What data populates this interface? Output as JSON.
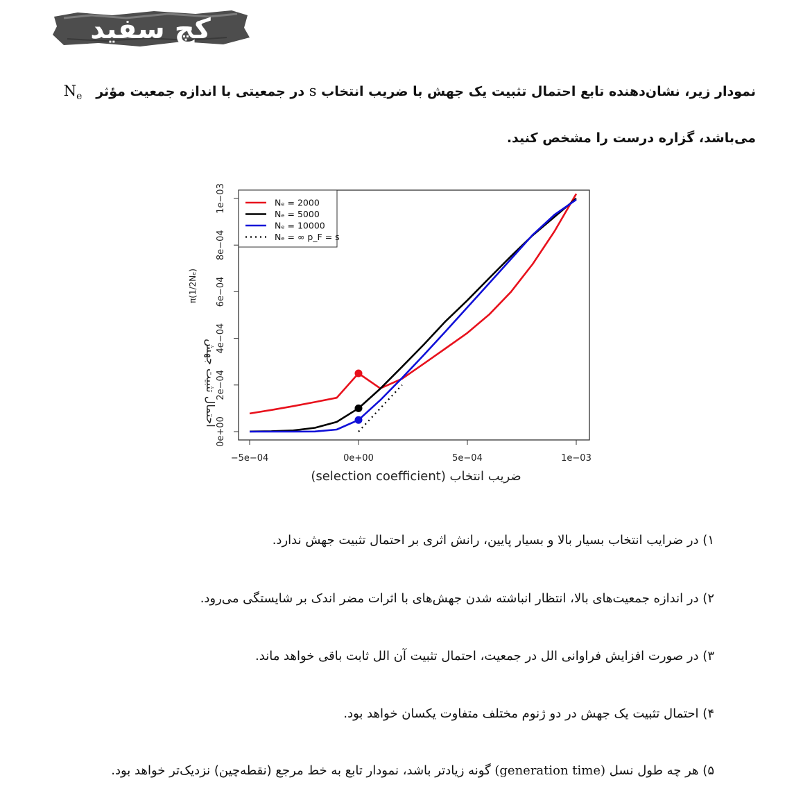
{
  "logo": {
    "text": "کچ سفید"
  },
  "question": {
    "line1_text": "نمودار زیر، نشان‌دهنده تابع احتمال تثبیت یک جهش با ضریب انتخاب",
    "line1_var": "s",
    "line1_text2": "در جمعیتی با اندازه جمعیت مؤثر",
    "line1_var2": "N",
    "line1_var2_sub": "e",
    "line2": "می‌باشد، گزاره درست را مشخص کنید."
  },
  "chart_data": {
    "type": "line",
    "xlabel": "ضریب انتخاب (selection coefficient)",
    "ylabel": "احتمال تثبیت جهش",
    "ylabel_top": "π(1/2Nₑ)",
    "xlim": [
      -0.00055,
      0.00105
    ],
    "ylim": [
      -3e-05,
      0.00104
    ],
    "x_ticks": [
      -0.0005,
      0,
      0.0005,
      0.001
    ],
    "x_tick_labels": [
      "−5e−04",
      "0e+00",
      "5e−04",
      "1e−03"
    ],
    "y_ticks": [
      0,
      0.0002,
      0.0004,
      0.0006,
      0.0008,
      0.001
    ],
    "y_tick_labels": [
      "0e+00",
      "2e−04",
      "4e−04",
      "6e−04",
      "8e−04",
      "1e−03"
    ],
    "legend_position": "top-left",
    "series": [
      {
        "name": "Nₑ = 2000",
        "color": "#e8111c",
        "dash": "solid",
        "x": [
          -0.0005,
          -0.0004,
          -0.0003,
          -0.0002,
          -0.0001,
          0,
          0.0001,
          0.0002,
          0.0003,
          0.0004,
          0.0005,
          0.0006,
          0.0007,
          0.0008,
          0.0009,
          0.001
        ],
        "y": [
          7.78e-05,
          9.29e-05,
          0.0001092,
          0.0001267,
          0.0001453,
          0.00025,
          0.0001854,
          0.0002269,
          0.0002913,
          0.0003571,
          0.0004233,
          0.000502,
          0.0005991,
          0.0007188,
          0.000859,
          0.00102
        ],
        "marker": {
          "x": 0,
          "y": 0.00025
        }
      },
      {
        "name": "Nₑ = 5000",
        "color": "#000000",
        "dash": "solid",
        "x": [
          -0.0005,
          -0.0004,
          -0.0003,
          -0.0002,
          -0.0001,
          0,
          0.0001,
          0.0002,
          0.0003,
          0.0004,
          0.0005,
          0.0006,
          0.0007,
          0.0008,
          0.0009,
          0.001
        ],
        "y": [
          5e-07,
          1.7e-06,
          5e-06,
          1.63e-05,
          4.16e-05,
          0.0001,
          0.0001843,
          0.000278,
          0.0003735,
          0.0004734,
          0.000563,
          0.000658,
          0.000752,
          0.000842,
          0.000921,
          0.001
        ],
        "marker": {
          "x": 0,
          "y": 0.0001
        }
      },
      {
        "name": "Nₑ = 10000",
        "color": "#1010d8",
        "dash": "solid",
        "x": [
          -0.0005,
          -0.0004,
          -0.0003,
          -0.0002,
          -0.0001,
          0,
          0.0001,
          0.0002,
          0.0003,
          0.0004,
          0.0005,
          0.0006,
          0.0007,
          0.0008,
          0.0009,
          0.001
        ],
        "y": [
          0,
          0,
          1e-07,
          7e-07,
          9e-06,
          5e-05,
          0.000135,
          0.00023,
          0.000329,
          0.00043,
          0.000533,
          0.000636,
          0.00074,
          0.000844,
          0.00093,
          0.000995
        ],
        "marker": {
          "x": 0,
          "y": 5e-05
        }
      },
      {
        "name": "Nₑ = ∞ p_F = s",
        "color": "#000000",
        "dash": "dotted",
        "x": [
          0,
          0.0002
        ],
        "y": [
          0,
          0.0002
        ]
      }
    ]
  },
  "options": [
    {
      "num": "۱)",
      "text": "در ضرایب انتخاب بسیار بالا و بسیار پایین، رانش اثری بر احتمال تثبیت جهش ندارد."
    },
    {
      "num": "۲)",
      "text": "در اندازه جمعیت‌های بالا، انتظار انباشته شدن جهش‌های با اثرات مضر اندک بر شایستگی می‌رود."
    },
    {
      "num": "۳)",
      "text": "در صورت افزایش فراوانی الل در جمعیت، احتمال تثبیت آن الل ثابت باقی خواهد ماند."
    },
    {
      "num": "۴)",
      "text": "احتمال تثبیت یک جهش در دو ژنوم مختلف متفاوت یکسان خواهد بود."
    },
    {
      "num": "۵)",
      "text_a": "هر چه طول نسل",
      "latin": "(generation time)",
      "text_b": "گونه زیادتر باشد، نمودار تابع به خط مرجع (نقطه‌چین) نزدیک‌تر خواهد بود."
    }
  ]
}
